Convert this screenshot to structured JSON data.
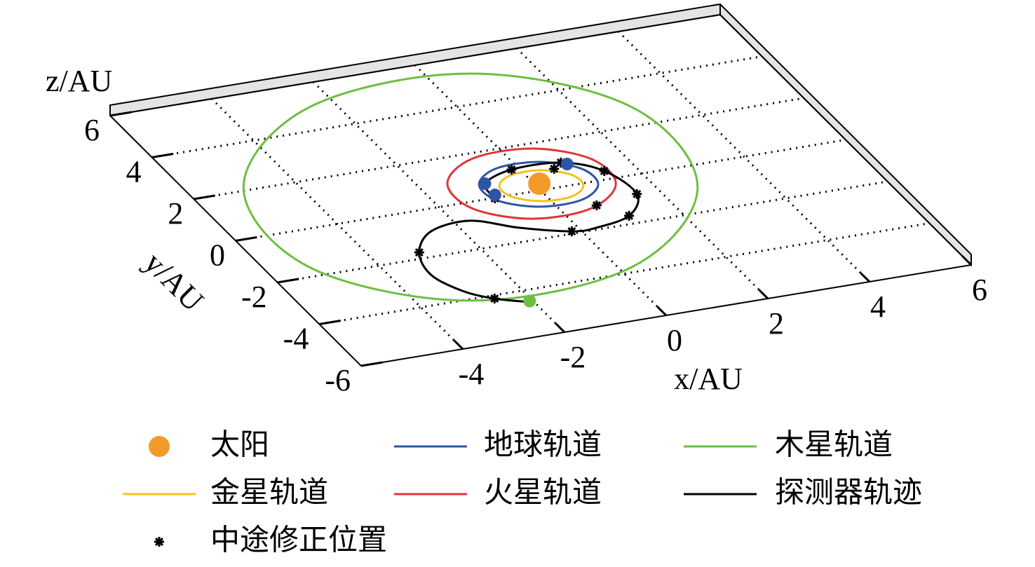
{
  "chart_data": {
    "type": "orbit",
    "xlabel": "x/AU",
    "ylabel": "y/AU",
    "zlabel": "z/AU",
    "xlim": [
      -6,
      6
    ],
    "ylim": [
      -6,
      6
    ],
    "xticks": [
      -4,
      -2,
      0,
      2,
      4,
      6
    ],
    "yticks": [
      -6,
      -4,
      -2,
      0,
      2,
      4,
      6
    ],
    "grid": true,
    "series": [
      {
        "name": "太阳",
        "kind": "point",
        "color": "#f39a2b",
        "x": [
          0.09
        ],
        "y": [
          0.28
        ]
      },
      {
        "name": "地球轨道",
        "kind": "orbit",
        "color": "#2e55a4",
        "x": [
          1.07,
          1.05,
          0.45,
          -0.38,
          -0.94,
          -0.91,
          -0.31,
          0.51
        ],
        "y": [
          -0.15,
          0.62,
          1.18,
          1.2,
          0.66,
          -0.11,
          -0.66,
          -0.68
        ],
        "bodies": {
          "x": [
            -0.83,
            -0.85,
            0.89
          ],
          "y": [
            0.65,
            0.12,
            0.9
          ]
        }
      },
      {
        "name": "木星轨道",
        "kind": "orbit",
        "color": "#6cbf3f",
        "x": [
          2.7,
          2.94,
          0.79,
          -2.48,
          -4.96,
          -5.2,
          -3.05,
          0.22
        ],
        "y": [
          -0.94,
          2.82,
          5.28,
          5.0,
          2.15,
          -1.6,
          -4.06,
          -3.79
        ],
        "bodies": {
          "x": [
            -2.06
          ],
          "y": [
            -4.48
          ]
        }
      },
      {
        "name": "金星轨道",
        "kind": "orbit",
        "color": "#f4c21f",
        "x": [
          0.8,
          0.78,
          0.35,
          -0.23,
          -0.62,
          -0.6,
          -0.17,
          0.41
        ],
        "y": [
          -0.1,
          0.43,
          0.82,
          0.83,
          0.47,
          -0.06,
          -0.45,
          -0.47
        ]
      },
      {
        "name": "火星轨道",
        "kind": "orbit",
        "color": "#e0343a",
        "x": [
          1.38,
          1.38,
          0.55,
          -0.63,
          -1.46,
          -1.46,
          -0.63,
          0.54
        ],
        "y": [
          -0.24,
          0.95,
          1.78,
          1.76,
          0.91,
          -0.28,
          -1.11,
          -1.09
        ]
      },
      {
        "name": "探测器轨迹",
        "kind": "line",
        "color": "#000000",
        "x": [
          -0.91,
          -0.82,
          -0.14,
          0.81,
          1.4,
          1.56,
          1.06,
          0.3,
          -0.17,
          -1.0,
          -1.71,
          -2.54,
          -3.1,
          -3.28,
          -3.02,
          -2.61,
          -2.08
        ],
        "y": [
          -0.02,
          0.65,
          1.05,
          1.0,
          0.36,
          -0.81,
          -1.65,
          -1.92,
          -1.9,
          -1.39,
          -0.77,
          -0.94,
          -1.73,
          -2.73,
          -3.61,
          -4.14,
          -4.52
        ]
      },
      {
        "name": "中途修正位置",
        "kind": "marker",
        "color": "#000000",
        "x": [
          -0.91,
          -0.82,
          -0.14,
          0.59,
          0.81,
          1.4,
          1.56,
          0.69,
          1.06,
          -0.17,
          -3.1,
          -2.61,
          -2.08
        ],
        "y": [
          -0.02,
          0.65,
          1.05,
          0.79,
          1.0,
          0.36,
          -0.81,
          -1.0,
          -1.65,
          -1.9,
          -1.73,
          -4.14,
          -4.52
        ]
      }
    ]
  }
}
